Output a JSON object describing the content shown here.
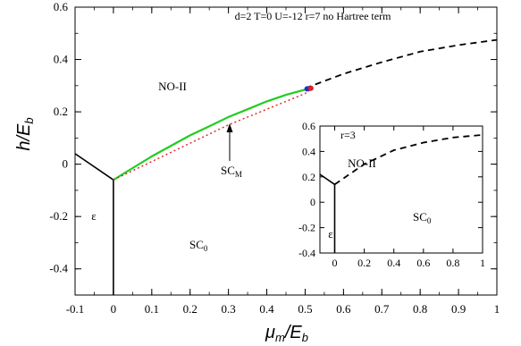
{
  "chart_data": [
    {
      "type": "line",
      "xlim": [
        -0.1,
        1.0
      ],
      "ylim": [
        -0.5,
        0.6
      ],
      "xticks": [
        "-0.1",
        "0",
        "0.1",
        "0.2",
        "0.3",
        "0.4",
        "0.5",
        "0.6",
        "0.7",
        "0.8",
        "0.9",
        "1"
      ],
      "yticks": [
        "-0.4",
        "-0.2",
        "0",
        "0.2",
        "0.4",
        "0.6"
      ],
      "xlabel_main": "μ",
      "xlabel_sub": "m",
      "xlabel_rest": "/E",
      "xlabel_sub2": "b",
      "ylabel_main": "h/E",
      "ylabel_sub": "b",
      "params_text": "d=2 T=0 U=-12 r=7 no Hartree term",
      "regions": {
        "no2": "NO-II",
        "eps": "ε",
        "sc0_main": "SC",
        "sc0_sub": "0",
        "scm_main": "SC",
        "scm_sub": "M"
      },
      "series": [
        {
          "style": "solid-black",
          "x": [
            -0.1,
            0.0
          ],
          "y": [
            0.04,
            -0.06
          ]
        },
        {
          "style": "solid-black-vertical",
          "x": [
            0.0,
            0.0
          ],
          "y": [
            -0.06,
            -0.5
          ]
        },
        {
          "style": "solid-green",
          "x": [
            0.0,
            0.05,
            0.1,
            0.15,
            0.2,
            0.25,
            0.3,
            0.35,
            0.4,
            0.45,
            0.5,
            0.51
          ],
          "y": [
            -0.06,
            -0.015,
            0.03,
            0.07,
            0.11,
            0.145,
            0.18,
            0.21,
            0.24,
            0.265,
            0.285,
            0.288
          ]
        },
        {
          "style": "dotted-red",
          "x": [
            0.0,
            0.1,
            0.2,
            0.3,
            0.4,
            0.5,
            0.52
          ],
          "y": [
            -0.06,
            0.01,
            0.08,
            0.15,
            0.21,
            0.27,
            0.29
          ]
        },
        {
          "style": "dashed-black",
          "x": [
            0.5,
            0.6,
            0.7,
            0.8,
            0.9,
            1.0
          ],
          "y": [
            0.29,
            0.345,
            0.39,
            0.43,
            0.455,
            0.475
          ]
        }
      ],
      "markers": [
        {
          "color": "blue",
          "x": 0.505,
          "y": 0.288
        },
        {
          "color": "red",
          "x": 0.515,
          "y": 0.29
        }
      ]
    },
    {
      "type": "line",
      "inset": true,
      "xlim": [
        -0.1,
        1.0
      ],
      "ylim": [
        -0.4,
        0.6
      ],
      "xticks": [
        "0",
        "0.2",
        "0.4",
        "0.6",
        "0.8",
        "1"
      ],
      "yticks": [
        "-0.4",
        "-0.2",
        "0",
        "0.2",
        "0.4",
        "0.6"
      ],
      "params_text": "r=3",
      "regions": {
        "no2": "NO-II",
        "eps": "ε",
        "sc0_main": "SC",
        "sc0_sub": "0"
      },
      "series": [
        {
          "style": "solid-black",
          "x": [
            -0.1,
            0.0
          ],
          "y": [
            0.22,
            0.14
          ]
        },
        {
          "style": "solid-black-vertical",
          "x": [
            0.0,
            0.0
          ],
          "y": [
            0.14,
            -0.4
          ]
        },
        {
          "style": "dashed-black",
          "x": [
            0.0,
            0.2,
            0.4,
            0.6,
            0.8,
            1.0
          ],
          "y": [
            0.14,
            0.3,
            0.41,
            0.47,
            0.51,
            0.53
          ]
        }
      ]
    }
  ]
}
